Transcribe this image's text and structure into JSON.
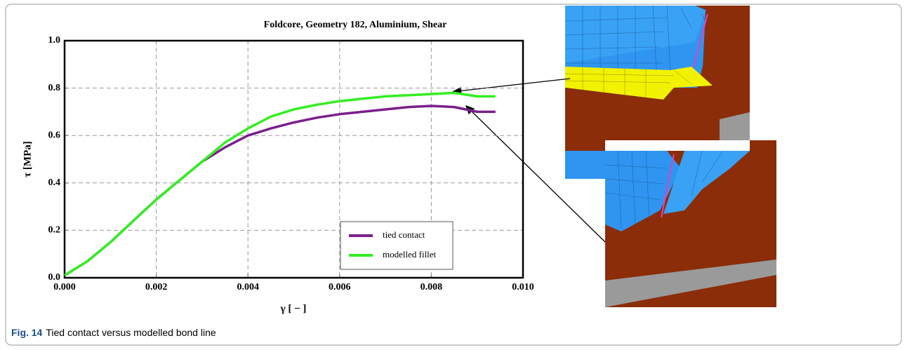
{
  "chart_data": {
    "type": "line",
    "title": "Foldcore, Geometry 182, Aluminium, Shear",
    "x_label": "γ [ − ]",
    "y_label": "τ [MPa]",
    "x": [
      0,
      0.0005,
      0.001,
      0.0015,
      0.002,
      0.0025,
      0.003,
      0.0035,
      0.004,
      0.0045,
      0.005,
      0.0055,
      0.006,
      0.0065,
      0.007,
      0.0075,
      0.008,
      0.0085,
      0.009,
      0.0094
    ],
    "series": [
      {
        "name": "tied contact",
        "color": "#7b1f8c",
        "values": [
          0.01,
          0.07,
          0.15,
          0.24,
          0.33,
          0.41,
          0.49,
          0.55,
          0.6,
          0.63,
          0.655,
          0.675,
          0.69,
          0.7,
          0.71,
          0.72,
          0.725,
          0.72,
          0.7,
          0.7
        ]
      },
      {
        "name": "modelled fillet",
        "color": "#33ee22",
        "values": [
          0.01,
          0.07,
          0.15,
          0.24,
          0.33,
          0.41,
          0.49,
          0.57,
          0.63,
          0.68,
          0.71,
          0.73,
          0.745,
          0.755,
          0.765,
          0.77,
          0.775,
          0.78,
          0.765,
          0.765
        ]
      }
    ],
    "xlim": [
      0,
      0.01
    ],
    "ylim": [
      0,
      1
    ],
    "xticks": [
      {
        "value": 0,
        "label": "0.000"
      },
      0.002,
      0.004,
      0.006,
      0.008,
      {
        "value": 0.01,
        "label": "0.010"
      }
    ],
    "yticks": [
      {
        "value": 0,
        "label": "0.0"
      },
      0.2,
      0.4,
      0.6,
      0.8,
      {
        "value": 1,
        "label": "1.0"
      }
    ],
    "grid": true,
    "legend": "lower right"
  },
  "figure": {
    "label": "Fig. 14",
    "caption": "Tied contact versus modelled bond line"
  }
}
